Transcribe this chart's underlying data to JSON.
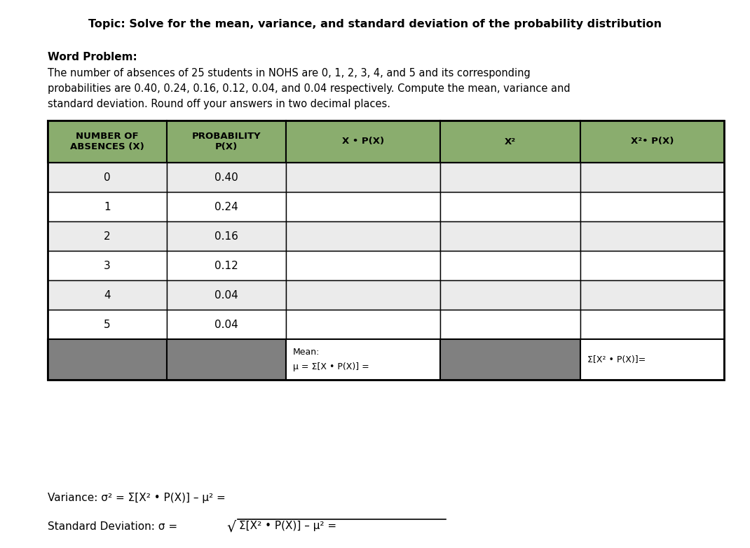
{
  "title": "Topic: Solve for the mean, variance, and standard deviation of the probability distribution",
  "word_problem_label": "Word Problem:",
  "word_problem_lines": [
    "The number of absences of 25 students in NOHS are 0, 1, 2, 3, 4, and 5 and its corresponding",
    "probabilities are 0.40, 0.24, 0.16, 0.12, 0.04, and 0.04 respectively. Compute the mean, variance and",
    "standard deviation. Round off your answers in two decimal places."
  ],
  "col_headers": [
    "NUMBER OF\nABSENCES (X)",
    "PROBABILITY\nP(X)",
    "X • P(X)",
    "X²",
    "X²• P(X)"
  ],
  "x_values": [
    "0",
    "1",
    "2",
    "3",
    "4",
    "5"
  ],
  "prob_values": [
    "0.40",
    "0.24",
    "0.16",
    "0.12",
    "0.04",
    "0.04"
  ],
  "header_bg": "#8aad6e",
  "row_bg_odd": "#ebebeb",
  "row_bg_even": "#ffffff",
  "summary_bg": "#808080",
  "border_color": "#000000",
  "mean_label": "Mean:",
  "mean_formula": "μ = Σ[X • P(X)] =",
  "sum_label": "Σ[X² • P(X)]=",
  "variance_text": "Variance: σ² = Σ[X² • P(X)] – μ² =",
  "std_prefix": "Standard Deviation: σ = ",
  "std_inner": "Σ[X² • P(X)] – μ² ="
}
